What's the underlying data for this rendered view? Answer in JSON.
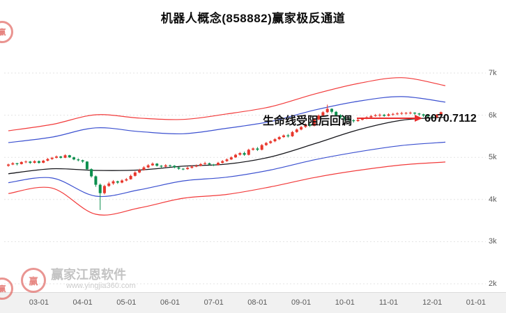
{
  "title": "机器人概念(858882)赢家极反通道",
  "annotation": {
    "text": "生命线受阻后回调",
    "price_label": "6070.7112"
  },
  "watermark": {
    "logo_char": "赢",
    "brand": "赢家江恩软件",
    "site": "www.yingjia360.com"
  },
  "chart_data": {
    "type": "candlestick",
    "title": "机器人概念(858882)赢家极反通道",
    "xlabel": "",
    "ylabel": "",
    "ylim": [
      2000,
      7600
    ],
    "grid": true,
    "legend": "none",
    "last_price": 6070.7112,
    "y_ticks": [
      {
        "label": "7k",
        "v": 7000
      },
      {
        "label": "6k",
        "v": 6000
      },
      {
        "label": "5k",
        "v": 5000
      },
      {
        "label": "4k",
        "v": 4000
      },
      {
        "label": "3k",
        "v": 3000
      },
      {
        "label": "2k",
        "v": 2000
      }
    ],
    "x_ticks": [
      {
        "label": "03-01",
        "i": 7
      },
      {
        "label": "04-01",
        "i": 17
      },
      {
        "label": "05-01",
        "i": 27
      },
      {
        "label": "06-01",
        "i": 37
      },
      {
        "label": "07-01",
        "i": 47
      },
      {
        "label": "08-01",
        "i": 57
      },
      {
        "label": "09-01",
        "i": 67
      },
      {
        "label": "10-01",
        "i": 77
      },
      {
        "label": "11-01",
        "i": 87
      },
      {
        "label": "12-01",
        "i": 97
      },
      {
        "label": "01-01",
        "i": 107
      }
    ],
    "colors": {
      "up": "#e8372c",
      "down": "#0c8f4e",
      "band_red": "#f23a3a",
      "band_blue": "#3b50d0",
      "life_line": "#15151a",
      "arrow": "#e82c2c",
      "grid": "#e3e3e3"
    },
    "bands": {
      "sample_step": 10,
      "upper_red": [
        5630,
        5780,
        6010,
        5930,
        5900,
        6030,
        6200,
        6500,
        6750,
        6890,
        6700
      ],
      "upper_blue": [
        5350,
        5480,
        5700,
        5610,
        5560,
        5690,
        5850,
        6120,
        6330,
        6440,
        6310
      ],
      "life_line": [
        4610,
        4730,
        4690,
        4700,
        4790,
        4840,
        5010,
        5320,
        5650,
        5880,
        5950
      ],
      "lower_blue": [
        4400,
        4510,
        4080,
        4230,
        4440,
        4530,
        4700,
        4940,
        5130,
        5280,
        5360
      ],
      "lower_red": [
        4140,
        4270,
        3650,
        3800,
        4030,
        4120,
        4300,
        4520,
        4690,
        4820,
        4890
      ]
    },
    "candles": [
      [
        4800,
        4850,
        4775,
        4830
      ],
      [
        4830,
        4885,
        4815,
        4860
      ],
      [
        4860,
        4870,
        4810,
        4840
      ],
      [
        4840,
        4905,
        4830,
        4890
      ],
      [
        4890,
        4925,
        4860,
        4900
      ],
      [
        4900,
        4915,
        4845,
        4870
      ],
      [
        4870,
        4930,
        4855,
        4910
      ],
      [
        4910,
        4925,
        4850,
        4870
      ],
      [
        4870,
        4940,
        4860,
        4920
      ],
      [
        4920,
        4985,
        4905,
        4960
      ],
      [
        4960,
        5010,
        4940,
        4990
      ],
      [
        4990,
        5045,
        4975,
        5020
      ],
      [
        5020,
        5035,
        4970,
        4990
      ],
      [
        4990,
        5075,
        4980,
        5050
      ],
      [
        5050,
        5060,
        4985,
        5000
      ],
      [
        5000,
        5015,
        4930,
        4950
      ],
      [
        4950,
        4975,
        4905,
        4930
      ],
      [
        4930,
        4945,
        4870,
        4900
      ],
      [
        4900,
        4910,
        4700,
        4720
      ],
      [
        4720,
        4740,
        4520,
        4550
      ],
      [
        4550,
        4570,
        4300,
        4350
      ],
      [
        4350,
        4380,
        3750,
        4150
      ],
      [
        4150,
        4350,
        4120,
        4320
      ],
      [
        4320,
        4420,
        4300,
        4380
      ],
      [
        4380,
        4460,
        4350,
        4430
      ],
      [
        4430,
        4445,
        4370,
        4400
      ],
      [
        4400,
        4480,
        4385,
        4450
      ],
      [
        4450,
        4510,
        4430,
        4480
      ],
      [
        4480,
        4590,
        4470,
        4560
      ],
      [
        4560,
        4670,
        4545,
        4640
      ],
      [
        4640,
        4730,
        4620,
        4700
      ],
      [
        4700,
        4790,
        4685,
        4760
      ],
      [
        4760,
        4840,
        4745,
        4810
      ],
      [
        4810,
        4880,
        4795,
        4850
      ],
      [
        4850,
        4865,
        4780,
        4800
      ],
      [
        4800,
        4815,
        4755,
        4780
      ],
      [
        4780,
        4840,
        4765,
        4810
      ],
      [
        4810,
        4825,
        4775,
        4800
      ],
      [
        4800,
        4815,
        4740,
        4760
      ],
      [
        4760,
        4775,
        4705,
        4730
      ],
      [
        4730,
        4745,
        4695,
        4720
      ],
      [
        4720,
        4780,
        4705,
        4750
      ],
      [
        4750,
        4810,
        4735,
        4780
      ],
      [
        4780,
        4830,
        4765,
        4800
      ],
      [
        4800,
        4865,
        4785,
        4840
      ],
      [
        4840,
        4895,
        4825,
        4860
      ],
      [
        4860,
        4875,
        4810,
        4830
      ],
      [
        4830,
        4845,
        4790,
        4820
      ],
      [
        4820,
        4895,
        4805,
        4870
      ],
      [
        4870,
        4935,
        4855,
        4910
      ],
      [
        4910,
        4975,
        4895,
        4950
      ],
      [
        4950,
        5025,
        4935,
        5000
      ],
      [
        5000,
        5085,
        4985,
        5060
      ],
      [
        5060,
        5125,
        5040,
        5100
      ],
      [
        5100,
        5135,
        5035,
        5060
      ],
      [
        5060,
        5205,
        5045,
        5180
      ],
      [
        5180,
        5235,
        5160,
        5210
      ],
      [
        5210,
        5245,
        5150,
        5180
      ],
      [
        5180,
        5315,
        5165,
        5290
      ],
      [
        5290,
        5365,
        5270,
        5340
      ],
      [
        5340,
        5405,
        5320,
        5380
      ],
      [
        5380,
        5455,
        5360,
        5430
      ],
      [
        5430,
        5505,
        5410,
        5480
      ],
      [
        5480,
        5545,
        5460,
        5520
      ],
      [
        5520,
        5555,
        5470,
        5500
      ],
      [
        5500,
        5625,
        5485,
        5600
      ],
      [
        5600,
        5685,
        5580,
        5660
      ],
      [
        5660,
        5745,
        5640,
        5720
      ],
      [
        5720,
        5805,
        5700,
        5780
      ],
      [
        5780,
        5810,
        5720,
        5750
      ],
      [
        5750,
        5925,
        5735,
        5900
      ],
      [
        5900,
        6015,
        5880,
        5990
      ],
      [
        5990,
        6095,
        5970,
        6070
      ],
      [
        6070,
        6250,
        6050,
        6150
      ],
      [
        6150,
        6165,
        6040,
        6080
      ],
      [
        6080,
        6100,
        5970,
        6000
      ],
      [
        6000,
        6020,
        5915,
        5950
      ],
      [
        5950,
        5975,
        5870,
        5900
      ],
      [
        5900,
        5930,
        5845,
        5880
      ],
      [
        5880,
        5905,
        5825,
        5860
      ],
      [
        5860,
        5915,
        5845,
        5890
      ],
      [
        5890,
        5945,
        5875,
        5920
      ],
      [
        5920,
        5975,
        5905,
        5950
      ],
      [
        5950,
        6005,
        5935,
        5980
      ],
      [
        5980,
        6030,
        5960,
        6000
      ],
      [
        6000,
        6040,
        5955,
        6010
      ],
      [
        6010,
        6030,
        5960,
        5985
      ],
      [
        5985,
        6045,
        5970,
        6020
      ],
      [
        6020,
        6055,
        5985,
        6030
      ],
      [
        6030,
        6070,
        6000,
        6040
      ],
      [
        6040,
        6080,
        6010,
        6050
      ],
      [
        6050,
        6075,
        6015,
        6055
      ],
      [
        6055,
        6085,
        6020,
        6060
      ],
      [
        6060,
        6070,
        6005,
        6040
      ],
      [
        6040,
        6055,
        5985,
        6020
      ],
      [
        6020,
        6035,
        5960,
        5990
      ],
      [
        5990,
        6010,
        5935,
        5970
      ],
      [
        5970,
        5985,
        5905,
        5950
      ],
      [
        5950,
        6025,
        5935,
        6010
      ],
      [
        6010,
        6085,
        5990,
        6070.71
      ]
    ]
  }
}
